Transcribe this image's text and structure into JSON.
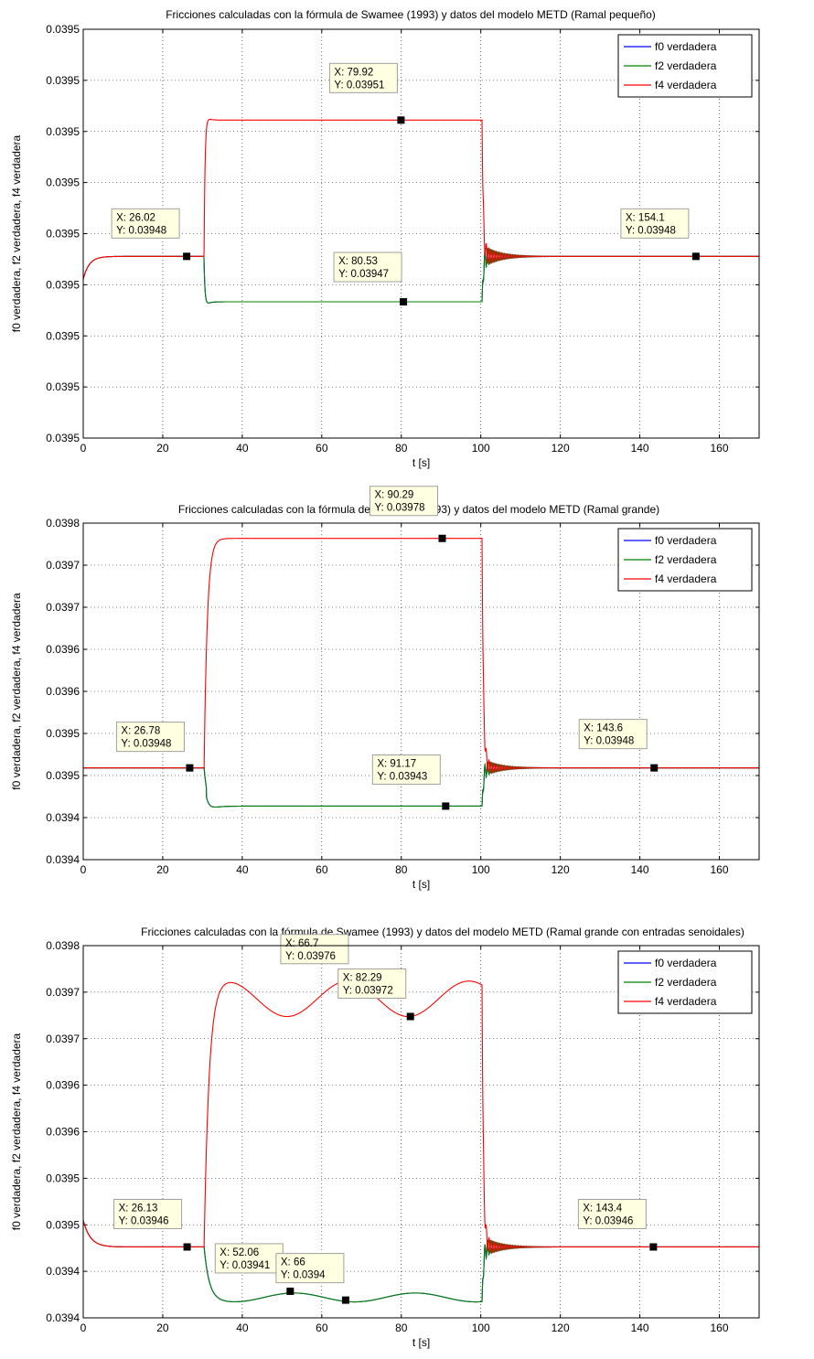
{
  "chart_data": [
    {
      "type": "line",
      "title": "Fricciones calculadas con la fórmula de Swamee (1993) y datos del modelo METD (Ramal pequeño)",
      "xlabel": "t [s]",
      "ylabel": "f0 verdadera, f2 verdadera, f4 verdadera",
      "xlim": [
        0,
        170
      ],
      "ylim": [
        0.03944,
        0.03953
      ],
      "xticks": [
        0,
        20,
        40,
        60,
        80,
        100,
        120,
        140,
        160
      ],
      "ytick_labels": [
        "0.0395",
        "0.0395",
        "0.0395",
        "0.0395",
        "0.0395",
        "0.0395",
        "0.0395",
        "0.0395",
        "0.0395"
      ],
      "grid": true,
      "legend_position": "top-right",
      "series": [
        {
          "name": "f0 verdadera",
          "color": "#0000ff"
        },
        {
          "name": "f2 verdadera",
          "color": "#008000"
        },
        {
          "name": "f4 verdadera",
          "color": "#ff0000"
        }
      ],
      "profile": {
        "base": 0.03948,
        "high": 0.03951,
        "low": 0.03947
      },
      "datatips": [
        {
          "x": 26.02,
          "y": 0.03948,
          "xtext": "X: 26.02",
          "ytext": "Y: 0.03948"
        },
        {
          "x": 79.92,
          "y": 0.03951,
          "xtext": "X: 79.92",
          "ytext": "Y: 0.03951"
        },
        {
          "x": 80.53,
          "y": 0.03947,
          "xtext": "X: 80.53",
          "ytext": "Y: 0.03947"
        },
        {
          "x": 154.1,
          "y": 0.03948,
          "xtext": "X: 154.1",
          "ytext": "Y: 0.03948"
        }
      ]
    },
    {
      "type": "line",
      "title": "Fricciones calculadas con la fórmula de Swamee (1993) y datos del modelo METD (Ramal grande)",
      "xlabel": "t [s]",
      "ylabel": "f0 verdadera, f2 verdadera, f4 verdadera",
      "xlim": [
        0,
        170
      ],
      "ylim": [
        0.03936,
        0.0398
      ],
      "xticks": [
        0,
        20,
        40,
        60,
        80,
        100,
        120,
        140,
        160
      ],
      "ytick_labels": [
        "0.0398",
        "0.0397",
        "0.0397",
        "0.0396",
        "0.0396",
        "0.0395",
        "0.0395",
        "0.0394",
        "0.0394"
      ],
      "grid": true,
      "legend_position": "top-right",
      "series": [
        {
          "name": "f0 verdadera",
          "color": "#0000ff"
        },
        {
          "name": "f2 verdadera",
          "color": "#008000"
        },
        {
          "name": "f4 verdadera",
          "color": "#ff0000"
        }
      ],
      "profile": {
        "base": 0.03948,
        "high": 0.03978,
        "low": 0.03943
      },
      "datatips": [
        {
          "x": 26.78,
          "y": 0.03948,
          "xtext": "X: 26.78",
          "ytext": "Y: 0.03948"
        },
        {
          "x": 90.29,
          "y": 0.03978,
          "xtext": "X: 90.29",
          "ytext": "Y: 0.03978"
        },
        {
          "x": 91.17,
          "y": 0.03943,
          "xtext": "X: 91.17",
          "ytext": "Y: 0.03943"
        },
        {
          "x": 143.6,
          "y": 0.03948,
          "xtext": "X: 143.6",
          "ytext": "Y: 0.03948"
        }
      ]
    },
    {
      "type": "line",
      "title": "Fricciones calculadas con la fórmula de Swamee (1993) y datos del modelo METD (Ramal grande con entradas senoidales)",
      "xlabel": "t [s]",
      "ylabel": "f0 verdadera, f2 verdadera, f4 verdadera",
      "xlim": [
        0,
        170
      ],
      "ylim": [
        0.03938,
        0.0398
      ],
      "xticks": [
        0,
        20,
        40,
        60,
        80,
        100,
        120,
        140,
        160
      ],
      "ytick_labels": [
        "0.0398",
        "0.0397",
        "0.0397",
        "0.0396",
        "0.0396",
        "0.0395",
        "0.0395",
        "0.0394",
        "0.0394"
      ],
      "grid": true,
      "legend_position": "top-right",
      "series": [
        {
          "name": "f0 verdadera",
          "color": "#0000ff"
        },
        {
          "name": "f2 verdadera",
          "color": "#008000"
        },
        {
          "name": "f4 verdadera",
          "color": "#ff0000"
        }
      ],
      "profile": {
        "base": 0.03946,
        "high_peak": 0.03976,
        "high_dip": 0.03972,
        "low_peak": 0.03941,
        "low_dip": 0.0394,
        "initial": 0.03949
      },
      "datatips": [
        {
          "x": 26.13,
          "y": 0.03946,
          "xtext": "X: 26.13",
          "ytext": "Y: 0.03946"
        },
        {
          "x": 66.7,
          "y": 0.03976,
          "xtext": "X: 66.7",
          "ytext": "Y: 0.03976"
        },
        {
          "x": 82.29,
          "y": 0.03972,
          "xtext": "X: 82.29",
          "ytext": "Y: 0.03972"
        },
        {
          "x": 52.06,
          "y": 0.03941,
          "xtext": "X: 52.06",
          "ytext": "Y: 0.03941"
        },
        {
          "x": 66,
          "y": 0.0394,
          "xtext": "X: 66",
          "ytext": "Y: 0.0394"
        },
        {
          "x": 143.4,
          "y": 0.03946,
          "xtext": "X: 143.4",
          "ytext": "Y: 0.03946"
        }
      ]
    }
  ]
}
